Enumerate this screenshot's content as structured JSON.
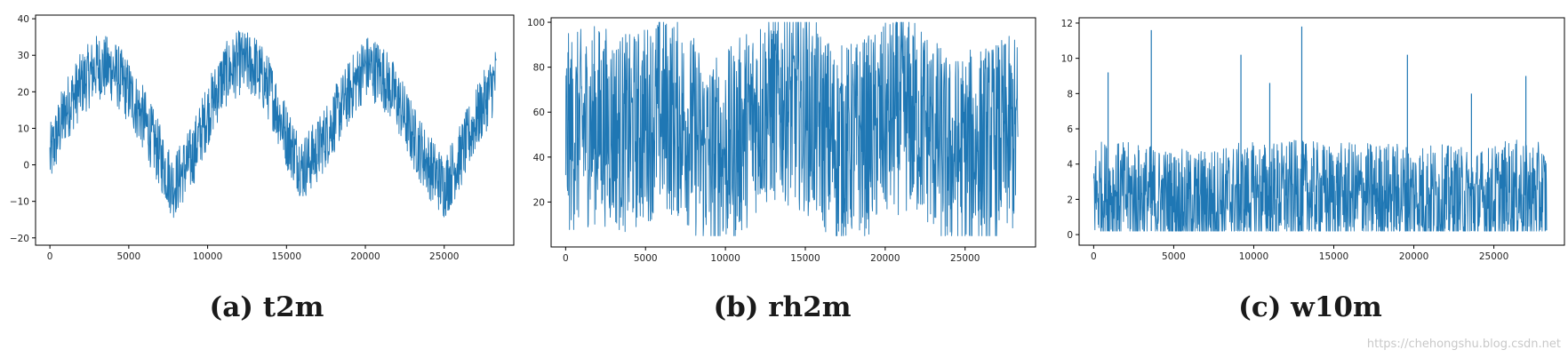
{
  "chart_data": [
    {
      "type": "line",
      "x": {
        "min": 0,
        "max": 28500,
        "ticks": [
          0,
          5000,
          10000,
          15000,
          20000,
          25000
        ]
      },
      "y": {
        "min": -22,
        "max": 41,
        "ticks": [
          -20,
          -10,
          0,
          10,
          20,
          30,
          40
        ]
      },
      "series": [
        {
          "color": "#1f77b4",
          "points": [
            [
              0,
              2
            ],
            [
              1000,
              15
            ],
            [
              2000,
              22
            ],
            [
              3000,
              27
            ],
            [
              4000,
              26
            ],
            [
              5000,
              20
            ],
            [
              6000,
              12
            ],
            [
              7000,
              2
            ],
            [
              7800,
              -6
            ],
            [
              9000,
              2
            ],
            [
              10000,
              14
            ],
            [
              11000,
              24
            ],
            [
              12000,
              28
            ],
            [
              13000,
              27
            ],
            [
              14000,
              20
            ],
            [
              15000,
              8
            ],
            [
              16000,
              -1
            ],
            [
              17000,
              4
            ],
            [
              18000,
              12
            ],
            [
              19000,
              20
            ],
            [
              20000,
              27
            ],
            [
              21000,
              25
            ],
            [
              22000,
              18
            ],
            [
              23000,
              8
            ],
            [
              24000,
              0
            ],
            [
              25000,
              -6
            ],
            [
              26000,
              2
            ],
            [
              27000,
              12
            ],
            [
              28300,
              24
            ]
          ],
          "band": 9
        }
      ],
      "caption": "(a) t2m"
    },
    {
      "type": "line",
      "x": {
        "min": 0,
        "max": 28500,
        "ticks": [
          0,
          5000,
          10000,
          15000,
          20000,
          25000
        ]
      },
      "y": {
        "min": 0,
        "max": 102,
        "ticks": [
          20,
          40,
          60,
          80,
          100
        ]
      },
      "series": [
        {
          "color": "#1f77b4",
          "points": [
            [
              0,
              50
            ],
            [
              2000,
              55
            ],
            [
              4000,
              50
            ],
            [
              6000,
              60
            ],
            [
              7500,
              55
            ],
            [
              9000,
              40
            ],
            [
              10500,
              45
            ],
            [
              12000,
              60
            ],
            [
              13500,
              65
            ],
            [
              15000,
              60
            ],
            [
              17000,
              45
            ],
            [
              19000,
              50
            ],
            [
              21000,
              60
            ],
            [
              22500,
              55
            ],
            [
              24000,
              40
            ],
            [
              26000,
              45
            ],
            [
              28300,
              50
            ]
          ],
          "band": 45,
          "clip": [
            5,
            100
          ]
        }
      ],
      "caption": "(b) rh2m"
    },
    {
      "type": "line",
      "x": {
        "min": 0,
        "max": 28500,
        "ticks": [
          0,
          5000,
          10000,
          15000,
          20000,
          25000
        ]
      },
      "y": {
        "min": -0.6,
        "max": 12.3,
        "ticks": [
          0,
          2,
          4,
          6,
          8,
          10,
          12
        ]
      },
      "series": [
        {
          "color": "#1f77b4",
          "points": [
            [
              0,
              2.4
            ],
            [
              3000,
              2.2
            ],
            [
              6000,
              1.8
            ],
            [
              9000,
              2.2
            ],
            [
              12000,
              2.4
            ],
            [
              15000,
              2.2
            ],
            [
              18000,
              2.3
            ],
            [
              21000,
              2.2
            ],
            [
              24000,
              1.9
            ],
            [
              26000,
              2.4
            ],
            [
              28300,
              2.2
            ]
          ],
          "band": 3,
          "clip": [
            0.2,
            12
          ],
          "spikes": [
            [
              3600,
              11.6
            ],
            [
              13000,
              11.8
            ],
            [
              9200,
              10.2
            ],
            [
              19600,
              10.2
            ],
            [
              900,
              9.2
            ],
            [
              27000,
              9.0
            ],
            [
              11000,
              8.6
            ],
            [
              23600,
              8.0
            ]
          ]
        }
      ],
      "caption": "(c) w10m"
    }
  ],
  "watermark": "https://chehongshu.blog.csdn.net"
}
